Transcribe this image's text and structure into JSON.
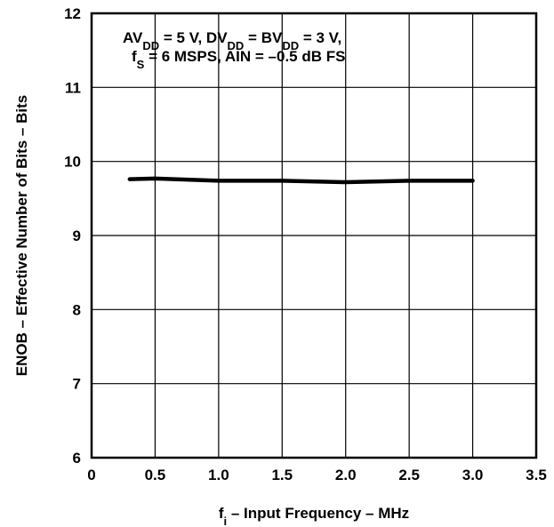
{
  "chart_data": {
    "type": "line",
    "xlabel": {
      "main": "f",
      "sub": "i",
      "rest": " – Input Frequency – MHz"
    },
    "ylabel": "ENOB – Effective Number of Bits – Bits",
    "xlim": [
      0,
      3.5
    ],
    "ylim": [
      6,
      12
    ],
    "x_ticks": [
      "0",
      "0.5",
      "1.0",
      "1.5",
      "2.0",
      "2.5",
      "3.0",
      "3.5"
    ],
    "y_ticks": [
      "6",
      "7",
      "8",
      "9",
      "10",
      "11",
      "12"
    ],
    "grid": true,
    "annotation": {
      "line1": [
        {
          "t": "AV",
          "sub": false
        },
        {
          "t": "DD",
          "sub": true
        },
        {
          "t": " = 5 V, DV",
          "sub": false
        },
        {
          "t": "DD",
          "sub": true
        },
        {
          "t": " = BV",
          "sub": false
        },
        {
          "t": "DD",
          "sub": true
        },
        {
          "t": " = 3 V,",
          "sub": false
        }
      ],
      "line2": [
        {
          "t": "f",
          "sub": false
        },
        {
          "t": "S",
          "sub": true
        },
        {
          "t": " = 6 MSPS, AIN = –0.5 dB FS",
          "sub": false
        }
      ]
    },
    "series": [
      {
        "x": [
          0.3,
          0.5,
          1.0,
          1.5,
          2.0,
          2.5,
          3.0
        ],
        "y": [
          9.76,
          9.77,
          9.74,
          9.74,
          9.72,
          9.74,
          9.74
        ]
      }
    ]
  }
}
